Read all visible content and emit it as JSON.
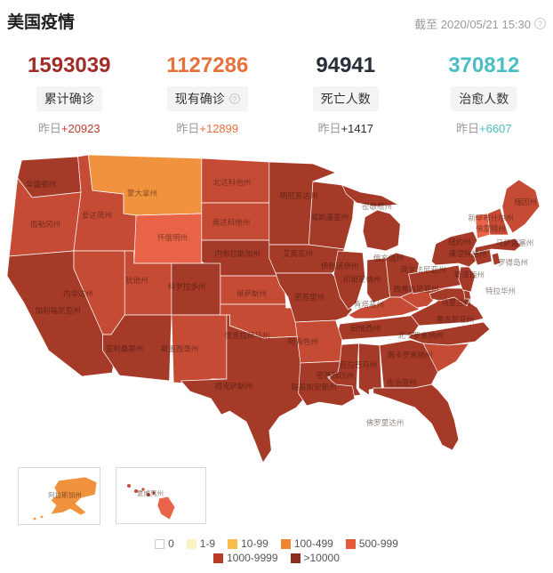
{
  "header": {
    "title": "美国疫情",
    "as_of": "截至 2020/05/21 15:30",
    "info_icon": "?"
  },
  "stats": {
    "items": [
      {
        "id": "cumulative-confirmed",
        "value": "1593039",
        "label": "累计确诊",
        "delta_prefix": "昨日",
        "delta": "+20923",
        "value_color": "#a22d28",
        "delta_color": "#c03a30",
        "has_info": false
      },
      {
        "id": "current-confirmed",
        "value": "1127286",
        "label": "现有确诊",
        "delta_prefix": "昨日",
        "delta": "+12899",
        "value_color": "#e8713b",
        "delta_color": "#e8713b",
        "has_info": true
      },
      {
        "id": "deaths",
        "value": "94941",
        "label": "死亡人数",
        "delta_prefix": "昨日",
        "delta": "+1417",
        "value_color": "#272e3a",
        "delta_color": "#272e3a",
        "has_info": false
      },
      {
        "id": "cured",
        "value": "370812",
        "label": "治愈人数",
        "delta_prefix": "昨日",
        "delta": "+6607",
        "value_color": "#4bbec3",
        "delta_color": "#4bbec3",
        "has_info": false
      }
    ]
  },
  "map": {
    "levels": {
      "l0": {
        "label": "0",
        "color": "#ffffff",
        "swatch": "#ffffff",
        "border": "#cccccc"
      },
      "l1": {
        "label": "1-9",
        "color": "#fbf2c4",
        "swatch": "#fbf2c4"
      },
      "l2": {
        "label": "10-99",
        "color": "#f6bd4a",
        "swatch": "#f6bd4a"
      },
      "l3": {
        "label": "100-499",
        "color": "#f0923e",
        "swatch": "#ed8533"
      },
      "l4": {
        "label": "500-999",
        "color": "#e96348",
        "swatch": "#e65a3c"
      },
      "l5": {
        "label": "1000-9999",
        "color": "#c54b35",
        "swatch": "#bc3b28"
      },
      "l6": {
        "label": ">10000",
        "color": "#a63a28",
        "swatch": "#8c2e1e"
      }
    },
    "states": [
      {
        "id": "WA",
        "name": "华盛顿州",
        "level": "l6"
      },
      {
        "id": "OR",
        "name": "俄勒冈州",
        "level": "l5"
      },
      {
        "id": "ID",
        "name": "爱达荷州",
        "level": "l5"
      },
      {
        "id": "MT",
        "name": "蒙大拿州",
        "level": "l3"
      },
      {
        "id": "WY",
        "name": "怀俄明州",
        "level": "l4"
      },
      {
        "id": "ND",
        "name": "北达科他州",
        "level": "l5"
      },
      {
        "id": "SD",
        "name": "南达科他州",
        "level": "l5"
      },
      {
        "id": "NE",
        "name": "内布拉斯加州",
        "level": "l6"
      },
      {
        "id": "KS",
        "name": "堪萨斯州",
        "level": "l5"
      },
      {
        "id": "UT",
        "name": "犹他州",
        "level": "l5"
      },
      {
        "id": "CO",
        "name": "科罗拉多州",
        "level": "l6"
      },
      {
        "id": "NV",
        "name": "内华达州",
        "level": "l5"
      },
      {
        "id": "CA",
        "name": "加利福尼亚州",
        "level": "l6"
      },
      {
        "id": "AZ",
        "name": "亚利桑那州",
        "level": "l6"
      },
      {
        "id": "NM",
        "name": "新墨西哥州",
        "level": "l5"
      },
      {
        "id": "OK",
        "name": "俄克拉荷马州",
        "level": "l5"
      },
      {
        "id": "TX",
        "name": "得克萨斯州",
        "level": "l6"
      },
      {
        "id": "MN",
        "name": "明尼苏达州",
        "level": "l6"
      },
      {
        "id": "WI",
        "name": "威斯康星州",
        "level": "l6"
      },
      {
        "id": "MI",
        "name": "密歇根州",
        "level": "l6"
      },
      {
        "id": "IA",
        "name": "艾奥瓦州",
        "level": "l6"
      },
      {
        "id": "MO",
        "name": "密苏里州",
        "level": "l6"
      },
      {
        "id": "IL",
        "name": "伊利诺伊州",
        "level": "l6"
      },
      {
        "id": "IN",
        "name": "印第安纳州",
        "level": "l6"
      },
      {
        "id": "OH",
        "name": "俄亥俄州",
        "level": "l6"
      },
      {
        "id": "KY",
        "name": "肯塔基州",
        "level": "l5"
      },
      {
        "id": "TN",
        "name": "田纳西州",
        "level": "l6"
      },
      {
        "id": "WV",
        "name": "西弗吉尼亚州",
        "level": "l5"
      },
      {
        "id": "VA",
        "name": "弗吉尼亚州",
        "level": "l6"
      },
      {
        "id": "MD",
        "name": "马里兰州",
        "level": "l6"
      },
      {
        "id": "DE",
        "name": "特拉华州",
        "level": "l6"
      },
      {
        "id": "NC",
        "name": "北卡罗来纳州",
        "level": "l6"
      },
      {
        "id": "SC",
        "name": "南卡罗来纳州",
        "level": "l5"
      },
      {
        "id": "GA",
        "name": "佐治亚州",
        "level": "l6"
      },
      {
        "id": "AL",
        "name": "亚拉巴马州",
        "level": "l6"
      },
      {
        "id": "MS",
        "name": "密西西比州",
        "level": "l6"
      },
      {
        "id": "AR",
        "name": "阿肯色州",
        "level": "l5"
      },
      {
        "id": "LA",
        "name": "路易斯安那州",
        "level": "l6"
      },
      {
        "id": "FL",
        "name": "佛罗里达州",
        "level": "l6"
      },
      {
        "id": "PA",
        "name": "宾夕法尼亚州",
        "level": "l6"
      },
      {
        "id": "NJ",
        "name": "新泽西州",
        "level": "l6"
      },
      {
        "id": "NY",
        "name": "纽约州",
        "level": "l6"
      },
      {
        "id": "CT",
        "name": "康涅狄格州",
        "level": "l6"
      },
      {
        "id": "RI",
        "name": "罗得岛州",
        "level": "l6"
      },
      {
        "id": "MA",
        "name": "马萨诸塞州",
        "level": "l6"
      },
      {
        "id": "VT",
        "name": "佛蒙特州",
        "level": "l4"
      },
      {
        "id": "NH",
        "name": "新罕布什尔州",
        "level": "l5"
      },
      {
        "id": "ME",
        "name": "缅因州",
        "level": "l5"
      }
    ],
    "insets": [
      {
        "id": "AK",
        "name": "阿拉斯加州",
        "level": "l3"
      },
      {
        "id": "HI",
        "name": "夏威夷州",
        "level": "l4"
      }
    ]
  },
  "legend": {
    "rows": [
      [
        "l0",
        "l1",
        "l2",
        "l3",
        "l4"
      ],
      [
        "l5",
        "l6"
      ]
    ]
  }
}
